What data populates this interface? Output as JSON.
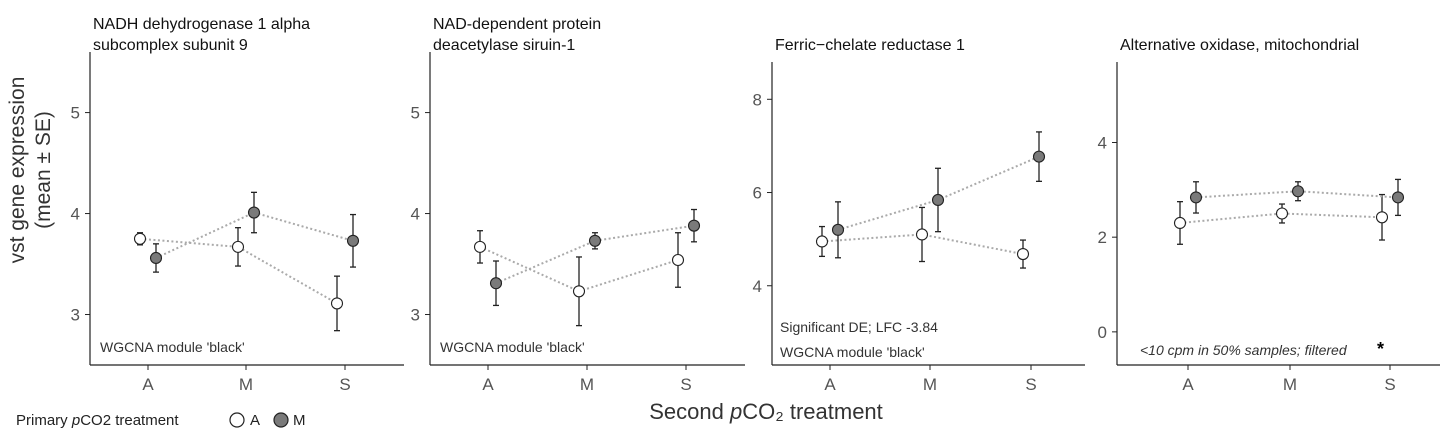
{
  "chart_data": [
    {
      "type": "line",
      "title_lines": [
        "NADH dehydrogenase 1 alpha",
        "subcomplex subunit 9"
      ],
      "categories": [
        "A",
        "M",
        "S"
      ],
      "ylim": [
        2.5,
        5.6
      ],
      "yticks": [
        "3",
        "4",
        "5"
      ],
      "series": [
        {
          "name": "A",
          "values": [
            3.75,
            3.67,
            3.11
          ],
          "se": [
            0.06,
            0.19,
            0.27
          ]
        },
        {
          "name": "M",
          "values": [
            3.56,
            4.01,
            3.73
          ],
          "se": [
            0.14,
            0.2,
            0.26
          ]
        }
      ],
      "annotations": [
        "WGCNA module 'black'"
      ],
      "star": ""
    },
    {
      "type": "line",
      "title_lines": [
        "NAD-dependent protein",
        "deacetylase siruin-1"
      ],
      "categories": [
        "A",
        "M",
        "S"
      ],
      "ylim": [
        2.5,
        5.6
      ],
      "yticks": [
        "3",
        "4",
        "5"
      ],
      "series": [
        {
          "name": "A",
          "values": [
            3.67,
            3.23,
            3.54
          ],
          "se": [
            0.16,
            0.34,
            0.27
          ]
        },
        {
          "name": "M",
          "values": [
            3.31,
            3.73,
            3.88
          ],
          "se": [
            0.22,
            0.08,
            0.16
          ]
        }
      ],
      "annotations": [
        "WGCNA module 'black'"
      ],
      "star": ""
    },
    {
      "type": "line",
      "title_lines": [
        "Ferric−chelate reductase 1"
      ],
      "categories": [
        "A",
        "M",
        "S"
      ],
      "ylim": [
        2.3,
        8.8
      ],
      "yticks": [
        "4",
        "6",
        "8"
      ],
      "series": [
        {
          "name": "A",
          "values": [
            4.95,
            5.1,
            4.68
          ],
          "se": [
            0.32,
            0.58,
            0.3
          ]
        },
        {
          "name": "M",
          "values": [
            5.2,
            5.84,
            6.77
          ],
          "se": [
            0.6,
            0.68,
            0.53
          ]
        }
      ],
      "annotations": [
        "Significant DE;  LFC -3.84",
        "WGCNA module 'black'"
      ],
      "star": ""
    },
    {
      "type": "line",
      "title_lines": [
        "Alternative oxidase, mitochondrial"
      ],
      "categories": [
        "A",
        "M",
        "S"
      ],
      "ylim": [
        -0.7,
        5.7
      ],
      "yticks": [
        "0",
        "2",
        "4"
      ],
      "series": [
        {
          "name": "A",
          "values": [
            2.3,
            2.5,
            2.42
          ],
          "se": [
            0.45,
            0.2,
            0.48
          ]
        },
        {
          "name": "M",
          "values": [
            2.84,
            2.97,
            2.84
          ],
          "se": [
            0.33,
            0.2,
            0.38
          ]
        }
      ],
      "annotations": [
        "<10 cpm in 50% samples; filtered"
      ],
      "star": "*"
    }
  ],
  "axes": {
    "ylabel_line1": "vst gene expression",
    "ylabel_line2": "(mean ± SE)",
    "xlabel_pre": "Second ",
    "xlabel_italic": "p",
    "xlabel_post": "CO₂ treatment"
  },
  "legend": {
    "title_pre": "Primary ",
    "title_italic": "p",
    "title_post": "CO2 treatment",
    "items": [
      {
        "label": "A",
        "fill": "#ffffff"
      },
      {
        "label": "M",
        "fill": "#7a7a7a"
      }
    ]
  },
  "colors": {
    "open_marker": "#ffffff",
    "filled_marker": "#7a7a7a",
    "line": "#aaaaaa",
    "error_bar": "#222222",
    "axis": "#222222"
  }
}
